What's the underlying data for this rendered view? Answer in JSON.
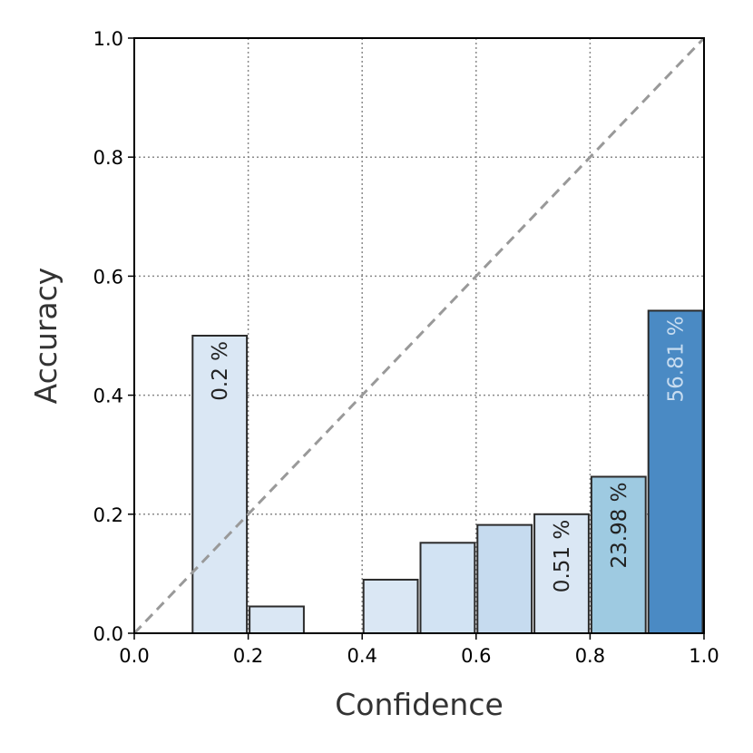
{
  "chart_data": {
    "type": "bar",
    "title": "",
    "xlabel": "Confidence",
    "ylabel": "Accuracy",
    "xlim": [
      0.0,
      1.0
    ],
    "ylim": [
      0.0,
      1.0
    ],
    "xticks": [
      "0.0",
      "0.2",
      "0.4",
      "0.6",
      "0.8",
      "1.0"
    ],
    "yticks": [
      "0.0",
      "0.2",
      "0.4",
      "0.6",
      "0.8",
      "1.0"
    ],
    "grid": true,
    "diagonal_reference_line": true,
    "bins": [
      {
        "x0": 0.0,
        "x1": 0.1,
        "accuracy": 0.0,
        "label": ""
      },
      {
        "x0": 0.1,
        "x1": 0.2,
        "accuracy": 0.5,
        "label": "0.2 %"
      },
      {
        "x0": 0.2,
        "x1": 0.3,
        "accuracy": 0.045,
        "label": ""
      },
      {
        "x0": 0.3,
        "x1": 0.4,
        "accuracy": 0.0,
        "label": ""
      },
      {
        "x0": 0.4,
        "x1": 0.5,
        "accuracy": 0.09,
        "label": ""
      },
      {
        "x0": 0.5,
        "x1": 0.6,
        "accuracy": 0.152,
        "label": ""
      },
      {
        "x0": 0.6,
        "x1": 0.7,
        "accuracy": 0.182,
        "label": ""
      },
      {
        "x0": 0.7,
        "x1": 0.8,
        "accuracy": 0.2,
        "label": "0.51 %"
      },
      {
        "x0": 0.8,
        "x1": 0.9,
        "accuracy": 0.263,
        "label": "23.98 %"
      },
      {
        "x0": 0.9,
        "x1": 1.0,
        "accuracy": 0.542,
        "label": "56.81 %"
      }
    ],
    "colors": {
      "bar_light": "#dae7f4",
      "bar_light2": "#d2e3f3",
      "bar_mid_light": "#c6dbef",
      "bar_mid": "#9ecae1",
      "bar_dark": "#4a8ac4",
      "bar_edge": "#2b2b2b",
      "label_dark": "#222222",
      "label_light": "#c7dcf0",
      "grid": "#8a8a8a",
      "diagonal": "#999999"
    }
  }
}
